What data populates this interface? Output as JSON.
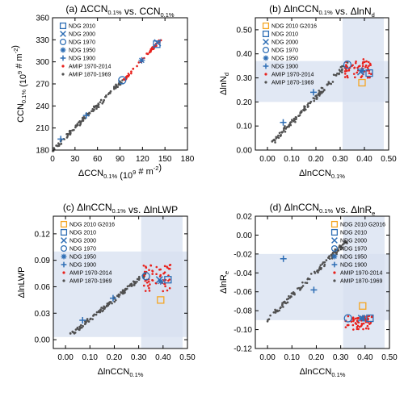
{
  "chart_data": [
    {
      "type": "scatter",
      "title": "(a) ΔCCN0.1% vs. CCN0.1%",
      "title_main": "(a) ΔCCN",
      "title_sub": "0.1%",
      "title_mid": " vs. CCN",
      "title_sub2": "0.1%",
      "xlabel_main": "ΔCCN",
      "xlabel_sub": "0.1%",
      "xlabel_tail": " (10",
      "xlabel_sup": "9",
      "xlabel_tail2": " # m",
      "xlabel_sup2": "-2",
      "xlabel_end": ")",
      "ylabel_main": "CCN",
      "ylabel_sub": "0.1%",
      "ylabel_tail": " (10",
      "ylabel_sup": "9",
      "ylabel_tail2": " # m",
      "ylabel_sup2": "-2",
      "ylabel_end": ")",
      "xlim": [
        0,
        180
      ],
      "ylim": [
        180,
        360
      ],
      "xticks": [
        0,
        30,
        60,
        90,
        120,
        150,
        180
      ],
      "yticks": [
        180,
        210,
        240,
        270,
        300,
        330,
        360
      ],
      "xtick_labels": [
        "0",
        "30",
        "60",
        "90",
        "120",
        "150",
        "180"
      ],
      "ytick_labels": [
        "180",
        "210",
        "240",
        "270",
        "300",
        "330",
        "360"
      ],
      "legend_position": "top-left",
      "shading": null,
      "markers": [
        {
          "series": "NDG 2010",
          "x": 139,
          "y": 324
        },
        {
          "series": "NDG 2000",
          "x": 140,
          "y": 326
        },
        {
          "series": "NDG 1970",
          "x": 93,
          "y": 275
        },
        {
          "series": "NDG 1950",
          "x": 119,
          "y": 302
        },
        {
          "series": "NDG 1900",
          "x": 45,
          "y": 227
        },
        {
          "series": "NDG 1900",
          "x": 11,
          "y": 195
        }
      ],
      "legend": [
        "NDG 2010",
        "NDG 2000",
        "NDG 1970",
        "NDG 1950",
        "NDG 1900",
        "AMIP 1970-2014",
        "AMIP 1870-1969"
      ],
      "cloud": {
        "red": {
          "x": [
            95,
            145
          ],
          "y": [
            275,
            331
          ]
        },
        "gray": {
          "x": [
            0,
            95
          ],
          "y": [
            180,
            276
          ]
        }
      }
    },
    {
      "type": "scatter",
      "title_main": "(b) ΔlnCCN",
      "title_sub": "0.1%",
      "title_mid": " vs. ΔlnN",
      "title_sub2": "d",
      "xlabel_main": "ΔlnCCN",
      "xlabel_sub": "0.1%",
      "ylabel_main": "ΔlnN",
      "ylabel_sub": "d",
      "xlim": [
        -0.05,
        0.5
      ],
      "ylim": [
        0,
        0.55
      ],
      "xticks": [
        0,
        0.1,
        0.2,
        0.3,
        0.4,
        0.5
      ],
      "yticks": [
        0,
        0.1,
        0.2,
        0.3,
        0.4,
        0.5
      ],
      "xtick_labels": [
        "0.00",
        "0.10",
        "0.20",
        "0.30",
        "0.40",
        "0.50"
      ],
      "ytick_labels": [
        "0.00",
        "0.10",
        "0.20",
        "0.30",
        "0.40",
        "0.50"
      ],
      "legend_position": "top-left",
      "shading": {
        "x": [
          0.31,
          0.48
        ],
        "y": [
          0.2,
          0.37
        ]
      },
      "markers": [
        {
          "series": "NDG 2010 G2016",
          "x": 0.39,
          "y": 0.28
        },
        {
          "series": "NDG 2010",
          "x": 0.42,
          "y": 0.32
        },
        {
          "series": "NDG 2000",
          "x": 0.385,
          "y": 0.325
        },
        {
          "series": "NDG 1970",
          "x": 0.33,
          "y": 0.355
        },
        {
          "series": "NDG 1950",
          "x": 0.39,
          "y": 0.33
        },
        {
          "series": "NDG 1900",
          "x": 0.19,
          "y": 0.24
        },
        {
          "series": "NDG 1900",
          "x": 0.065,
          "y": 0.115
        }
      ],
      "legend": [
        "NDG 2010 G2016",
        "NDG 2010",
        "NDG 2000",
        "NDG 1970",
        "NDG 1950",
        "NDG 1900",
        "AMIP 1970-2014",
        "AMIP 1870-1969"
      ],
      "cloud": {
        "red": {
          "x": [
            0.32,
            0.43
          ],
          "y": [
            0.3,
            0.38
          ]
        },
        "gray": {
          "x": [
            0.02,
            0.33
          ],
          "y": [
            0.03,
            0.36
          ]
        }
      }
    },
    {
      "type": "scatter",
      "title_main": "(c) ΔlnCCN",
      "title_sub": "0.1%",
      "title_mid": " vs. ΔlnLWP",
      "title_sub2": "",
      "xlabel_main": "ΔlnCCN",
      "xlabel_sub": "0.1%",
      "ylabel_main": "ΔlnLWP",
      "ylabel_sub": "",
      "xlim": [
        -0.05,
        0.5
      ],
      "ylim": [
        -0.01,
        0.14
      ],
      "xticks": [
        0,
        0.1,
        0.2,
        0.3,
        0.4,
        0.5
      ],
      "yticks": [
        0,
        0.03,
        0.06,
        0.09,
        0.12
      ],
      "xtick_labels": [
        "0.00",
        "0.10",
        "0.20",
        "0.30",
        "0.40",
        "0.50"
      ],
      "ytick_labels": [
        "0.00",
        "0.03",
        "0.06",
        "0.09",
        "0.12"
      ],
      "legend_position": "top-left",
      "shading": {
        "x": [
          0.31,
          0.48
        ],
        "y": [
          0.003,
          0.1
        ]
      },
      "markers": [
        {
          "series": "NDG 2010 G2016",
          "x": 0.39,
          "y": 0.045
        },
        {
          "series": "NDG 2010",
          "x": 0.42,
          "y": 0.068
        },
        {
          "series": "NDG 2000",
          "x": 0.385,
          "y": 0.068
        },
        {
          "series": "NDG 1970",
          "x": 0.33,
          "y": 0.072
        },
        {
          "series": "NDG 1950",
          "x": 0.39,
          "y": 0.066
        },
        {
          "series": "NDG 1900",
          "x": 0.195,
          "y": 0.047
        },
        {
          "series": "NDG 1900",
          "x": 0.07,
          "y": 0.022
        }
      ],
      "legend": [
        "NDG 2010 G2016",
        "NDG 2010",
        "NDG 2000",
        "NDG 1970",
        "NDG 1950",
        "NDG 1900",
        "AMIP 1970-2014",
        "AMIP 1870-1969"
      ],
      "cloud": {
        "red": {
          "x": [
            0.32,
            0.43
          ],
          "y": [
            0.055,
            0.085
          ]
        },
        "gray": {
          "x": [
            0.02,
            0.33
          ],
          "y": [
            0.005,
            0.075
          ]
        }
      }
    },
    {
      "type": "scatter",
      "title_main": "(d) ΔlnCCN",
      "title_sub": "0.1%",
      "title_mid": " vs. ΔlnR",
      "title_sub2": "e",
      "xlabel_main": "ΔlnCCN",
      "xlabel_sub": "0.1%",
      "ylabel_main": "ΔlnR",
      "ylabel_sub": "e",
      "xlim": [
        -0.05,
        0.5
      ],
      "ylim": [
        -0.12,
        0.02
      ],
      "xticks": [
        0,
        0.1,
        0.2,
        0.3,
        0.4,
        0.5
      ],
      "yticks": [
        -0.12,
        -0.1,
        -0.08,
        -0.06,
        -0.04,
        -0.02,
        0,
        0.02
      ],
      "xtick_labels": [
        "0.00",
        "0.10",
        "0.20",
        "0.30",
        "0.40",
        "0.50"
      ],
      "ytick_labels": [
        "-0.12",
        "-0.10",
        "-0.08",
        "-0.06",
        "-0.04",
        "-0.02",
        "0.00",
        "0.02"
      ],
      "legend_position": "top-right",
      "shading": {
        "x": [
          0.31,
          0.48
        ],
        "y": [
          -0.09,
          -0.02
        ]
      },
      "markers": [
        {
          "series": "NDG 2010 G2016",
          "x": 0.39,
          "y": -0.075
        },
        {
          "series": "NDG 2010",
          "x": 0.42,
          "y": -0.088
        },
        {
          "series": "NDG 2000",
          "x": 0.385,
          "y": -0.088
        },
        {
          "series": "NDG 1970",
          "x": 0.33,
          "y": -0.088
        },
        {
          "series": "NDG 1950",
          "x": 0.39,
          "y": -0.088
        },
        {
          "series": "NDG 1900",
          "x": 0.19,
          "y": -0.058
        },
        {
          "series": "NDG 1900",
          "x": 0.065,
          "y": -0.025
        }
      ],
      "legend": [
        "NDG 2010 G2016",
        "NDG 2010",
        "NDG 2000",
        "NDG 1970",
        "NDG 1950",
        "NDG 1900",
        "AMIP 1970-2014",
        "AMIP 1870-1969"
      ],
      "cloud": {
        "red": {
          "x": [
            0.32,
            0.43
          ],
          "y": [
            -0.1,
            -0.085
          ]
        },
        "gray": {
          "x": [
            0.0,
            0.33
          ],
          "y": [
            -0.09,
            -0.005
          ]
        }
      }
    }
  ],
  "series_styles": {
    "NDG 2010 G2016": {
      "symbol": "square",
      "color": "#f5a623"
    },
    "NDG 2010": {
      "symbol": "square",
      "color": "#2e6eb5"
    },
    "NDG 2000": {
      "symbol": "x",
      "color": "#2e6eb5"
    },
    "NDG 1970": {
      "symbol": "circle",
      "color": "#2e6eb5"
    },
    "NDG 1950": {
      "symbol": "star",
      "color": "#2e6eb5"
    },
    "NDG 1900": {
      "symbol": "plus",
      "color": "#2e6eb5"
    },
    "AMIP 1970-2014": {
      "symbol": "dot",
      "color": "#e8211c"
    },
    "AMIP 1870-1969": {
      "symbol": "dot",
      "color": "#505050"
    }
  },
  "colors": {
    "shading": "#d7e0f0",
    "axis": "#000000"
  }
}
